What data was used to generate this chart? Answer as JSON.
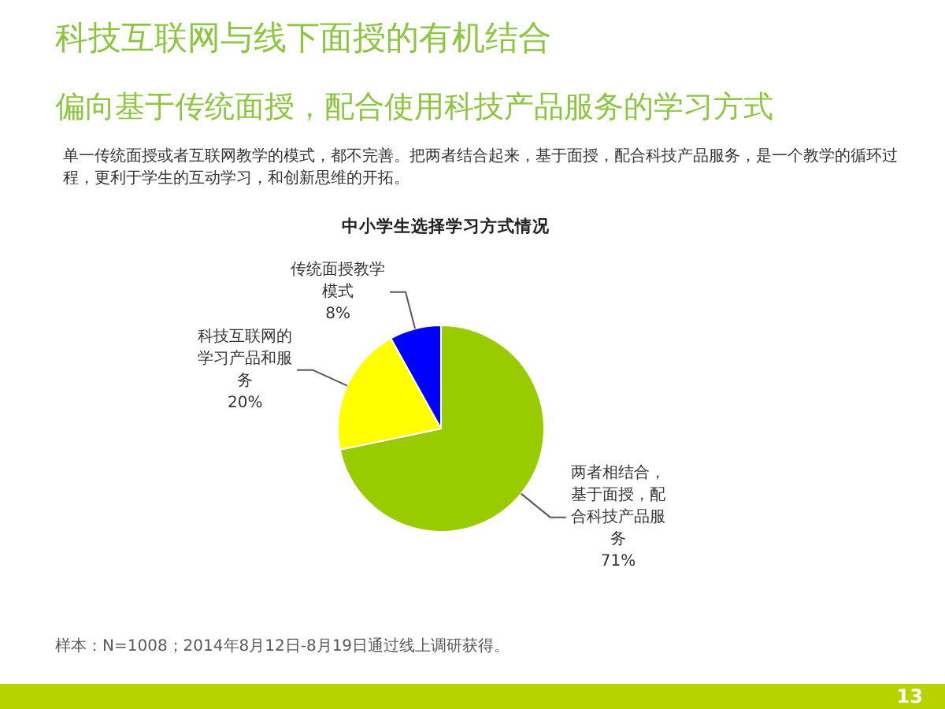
{
  "chart_data": {
    "type": "pie",
    "title": "科技互联网与线下面授的有机结合",
    "subtitle": "偏向基于传统面授，配合使用科技产品服务的学习方式",
    "categories": [
      "两者相结合，基于面授，配合科技产品服务",
      "科技互联网的学习产品和服务",
      "传统面授教学模式"
    ],
    "values": [
      71,
      20,
      8
    ],
    "colors": [
      "#99cc00",
      "#ffff00",
      "#0000ff"
    ],
    "value_labels": [
      "71%",
      "20%",
      "8%"
    ],
    "annotations": [
      "单一传统面授或者互联网教学的模式，都不完善。把两者结合起来，基于面授，配合科技产品服务，是一个教学的循环过程，更利于学生的互动学习，和创新思维的开拓。",
      "中小学生选择学习方式情况",
      "样本：N=1008；2014年8月12日-8月19日通过线上调研获得。",
      "13"
    ]
  }
}
